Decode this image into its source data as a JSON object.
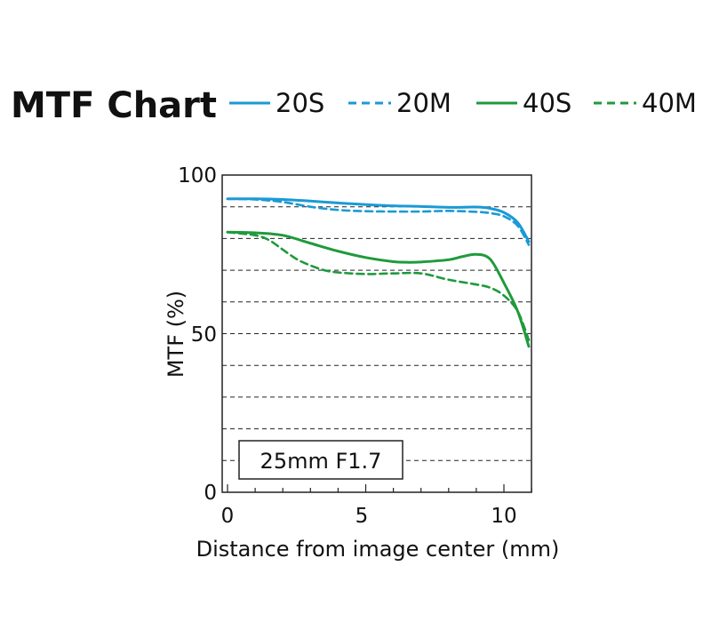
{
  "chart_data": {
    "type": "line",
    "title": "MTF Chart",
    "xlabel": "Distance from image center (mm)",
    "ylabel": "MTF (%)",
    "xlim": [
      0,
      11
    ],
    "ylim": [
      0,
      100
    ],
    "x_ticks": [
      "0",
      "5",
      "10"
    ],
    "y_ticks": [
      "100",
      "50",
      "0"
    ],
    "grid": "horizontal dashed, every 10%",
    "legend_position": "top",
    "annotation": "25mm F1.7",
    "colors": {
      "blue": "#1a9ad6",
      "green": "#1f9a3c"
    },
    "series": [
      {
        "name": "20S",
        "color": "#1a9ad6",
        "style": "solid",
        "x": [
          0,
          1,
          2,
          3,
          4,
          5,
          6,
          7,
          8,
          9,
          9.5,
          10,
          10.5,
          10.9
        ],
        "y": [
          92.5,
          92.5,
          92.3,
          91.8,
          91.2,
          90.7,
          90.3,
          90.1,
          89.8,
          89.9,
          89.5,
          88.2,
          85.0,
          79.0
        ]
      },
      {
        "name": "20M",
        "color": "#1a9ad6",
        "style": "dashed",
        "x": [
          0,
          1,
          2,
          3,
          4,
          5,
          6,
          7,
          8,
          9,
          9.5,
          10,
          10.5,
          10.9
        ],
        "y": [
          92.5,
          92.3,
          91.5,
          90.0,
          89.0,
          88.6,
          88.5,
          88.5,
          88.7,
          88.4,
          88.0,
          87.0,
          84.0,
          78.0
        ]
      },
      {
        "name": "40S",
        "color": "#1f9a3c",
        "style": "solid",
        "x": [
          0,
          1,
          2,
          3,
          4,
          5,
          6,
          6.5,
          7,
          8,
          8.5,
          9,
          9.5,
          10,
          10.5,
          10.9
        ],
        "y": [
          82.0,
          81.8,
          81.0,
          78.5,
          76.0,
          74.0,
          72.7,
          72.5,
          72.6,
          73.3,
          74.3,
          75.0,
          73.5,
          66.0,
          57.0,
          46.0
        ]
      },
      {
        "name": "40M",
        "color": "#1f9a3c",
        "style": "dashed",
        "x": [
          0,
          1,
          1.5,
          2,
          2.5,
          3,
          3.5,
          4,
          5,
          6,
          7,
          8,
          9,
          9.5,
          10,
          10.5,
          10.9
        ],
        "y": [
          82.0,
          81.0,
          79.5,
          76.5,
          73.5,
          71.5,
          70.0,
          69.3,
          68.8,
          69.0,
          69.0,
          67.0,
          65.5,
          64.5,
          62.0,
          57.0,
          48.0
        ]
      }
    ]
  }
}
